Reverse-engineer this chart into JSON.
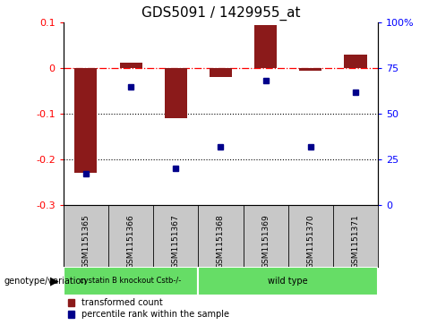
{
  "title": "GDS5091 / 1429955_at",
  "samples": [
    "GSM1151365",
    "GSM1151366",
    "GSM1151367",
    "GSM1151368",
    "GSM1151369",
    "GSM1151370",
    "GSM1151371"
  ],
  "red_values": [
    -0.23,
    0.012,
    -0.11,
    -0.02,
    0.095,
    -0.005,
    0.03
  ],
  "blue_values": [
    17,
    65,
    20,
    32,
    68,
    32,
    62
  ],
  "group1_label": "cystatin B knockout Cstb-/-",
  "group1_count": 3,
  "group2_label": "wild type",
  "group2_count": 4,
  "group_color": "#66DD66",
  "ylim_left": [
    -0.3,
    0.1
  ],
  "ylim_right": [
    0,
    100
  ],
  "yticks_left": [
    -0.3,
    -0.2,
    -0.1,
    0.0,
    0.1
  ],
  "yticks_right": [
    0,
    25,
    50,
    75,
    100
  ],
  "dotted_lines": [
    -0.1,
    -0.2
  ],
  "red_color": "#8B1A1A",
  "blue_color": "#00008B",
  "bg_color": "#ffffff",
  "grey_color": "#C8C8C8",
  "legend_red": "transformed count",
  "legend_blue": "percentile rank within the sample",
  "genotype_label": "genotype/variation"
}
